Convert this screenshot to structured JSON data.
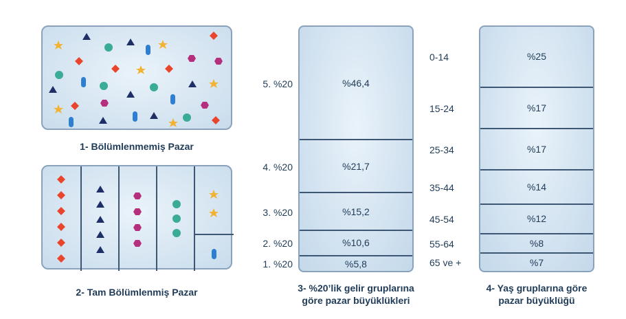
{
  "panel1": {
    "caption": "1- Bölümlenmemiş Pazar"
  },
  "panel2": {
    "caption": "2- Tam Bölümlenmiş Pazar"
  },
  "chart3": {
    "caption_line1": "3- %20’lik gelir gruplarına",
    "caption_line2": "göre pazar büyüklükleri",
    "segments": [
      {
        "label": "5. %20",
        "value_text": "%46,4",
        "value": 46.4
      },
      {
        "label": "4. %20",
        "value_text": "%21,7",
        "value": 21.7
      },
      {
        "label": "3. %20",
        "value_text": "%15,2",
        "value": 15.2
      },
      {
        "label": "2. %20",
        "value_text": "%10,6",
        "value": 10.6
      },
      {
        "label": "1. %20",
        "value_text": "%5,8",
        "value": 5.8
      }
    ]
  },
  "chart4": {
    "caption_line1": "4- Yaş gruplarına göre",
    "caption_line2": "pazar büyüklüğü",
    "segments": [
      {
        "label": "0-14",
        "value_text": "%25",
        "value": 25
      },
      {
        "label": "15-24",
        "value_text": "%17",
        "value": 17
      },
      {
        "label": "25-34",
        "value_text": "%17",
        "value": 17
      },
      {
        "label": "35-44",
        "value_text": "%14",
        "value": 14
      },
      {
        "label": "45-54",
        "value_text": "%12",
        "value": 12
      },
      {
        "label": "55-64",
        "value_text": "%8",
        "value": 8
      },
      {
        "label": "65 ve +",
        "value_text": "%7",
        "value": 7
      }
    ]
  },
  "colors": {
    "red": "#e8452c",
    "navy": "#1d2f66",
    "teal": "#3aab96",
    "blue": "#2f7fd0",
    "magenta": "#b5307c",
    "yellow": "#f2b233"
  }
}
